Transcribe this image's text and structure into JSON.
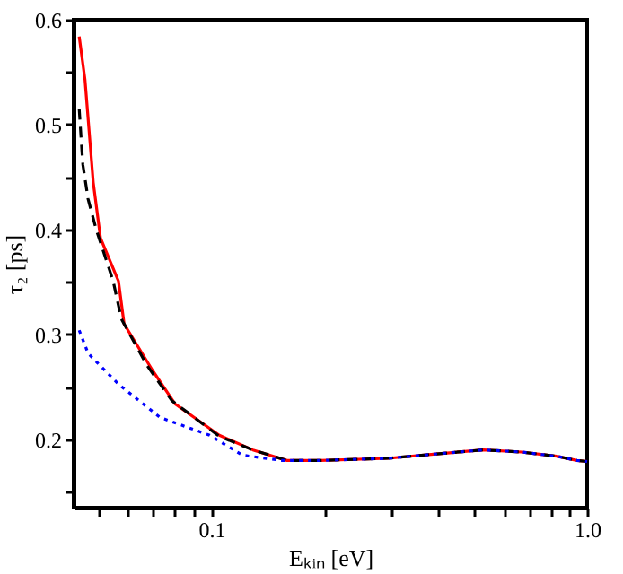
{
  "chart_data": {
    "type": "line",
    "xlabel": "Eₖᵢₙ [eV]",
    "ylabel": "τ₂ [ps]",
    "log": "x",
    "xlim": [
      0.043,
      1.0
    ],
    "ylim": [
      0.135,
      0.6
    ],
    "xticks": [
      {
        "value": 0.05,
        "label": null
      },
      {
        "value": 0.06,
        "label": null
      },
      {
        "value": 0.07,
        "label": null
      },
      {
        "value": 0.08,
        "label": null
      },
      {
        "value": 0.09,
        "label": null
      },
      0.1,
      {
        "value": 0.2,
        "label": null
      },
      {
        "value": 0.3,
        "label": null
      },
      {
        "value": 0.4,
        "label": null
      },
      {
        "value": 0.5,
        "label": null
      },
      {
        "value": 0.6,
        "label": null
      },
      {
        "value": 0.7,
        "label": null
      },
      {
        "value": 0.8,
        "label": null
      },
      {
        "value": 0.9,
        "label": null
      },
      {
        "value": 1.0,
        "label": "1.0"
      }
    ],
    "yticks": [
      {
        "value": 0.15,
        "label": null
      },
      0.2,
      {
        "value": 0.25,
        "label": null
      },
      0.3,
      {
        "value": 0.35,
        "label": null
      },
      0.4,
      {
        "value": 0.45,
        "label": null
      },
      0.5,
      {
        "value": 0.55,
        "label": null
      },
      0.6
    ],
    "grid": false,
    "marker": "none",
    "series": [
      {
        "color": "#ff0000",
        "line_style": "solid",
        "x": [
          0.0445,
          0.0461,
          0.0485,
          0.0507,
          0.0566,
          0.0586,
          0.0697,
          0.08,
          0.105,
          0.129,
          0.159,
          0.195,
          0.295,
          0.39,
          0.53,
          0.67,
          0.83,
          0.94,
          1.0
        ],
        "values": [
          0.584,
          0.543,
          0.445,
          0.392,
          0.351,
          0.31,
          0.266,
          0.234,
          0.204,
          0.19,
          0.18,
          0.18,
          0.182,
          0.186,
          0.19,
          0.188,
          0.184,
          0.18,
          0.179
        ]
      },
      {
        "color": "#000000",
        "line_style": "dashed",
        "x": [
          0.0445,
          0.0455,
          0.047,
          0.0494,
          0.0548,
          0.0576,
          0.0673,
          0.0785,
          0.105,
          0.129,
          0.159,
          0.195,
          0.295,
          0.39,
          0.53,
          0.67,
          0.83,
          0.94,
          1.0
        ],
        "values": [
          0.515,
          0.462,
          0.429,
          0.4,
          0.351,
          0.315,
          0.271,
          0.237,
          0.203,
          0.19,
          0.18,
          0.18,
          0.182,
          0.186,
          0.19,
          0.188,
          0.184,
          0.18,
          0.179
        ]
      },
      {
        "color": "#0000ff",
        "line_style": "dotted",
        "x": [
          0.0445,
          0.047,
          0.0565,
          0.073,
          0.099,
          0.121,
          0.154,
          0.195,
          0.295,
          0.39,
          0.53,
          0.67,
          0.83,
          0.94,
          1.0
        ],
        "values": [
          0.304,
          0.282,
          0.253,
          0.221,
          0.204,
          0.185,
          0.18,
          0.18,
          0.182,
          0.186,
          0.19,
          0.188,
          0.184,
          0.18,
          0.179
        ]
      }
    ]
  }
}
